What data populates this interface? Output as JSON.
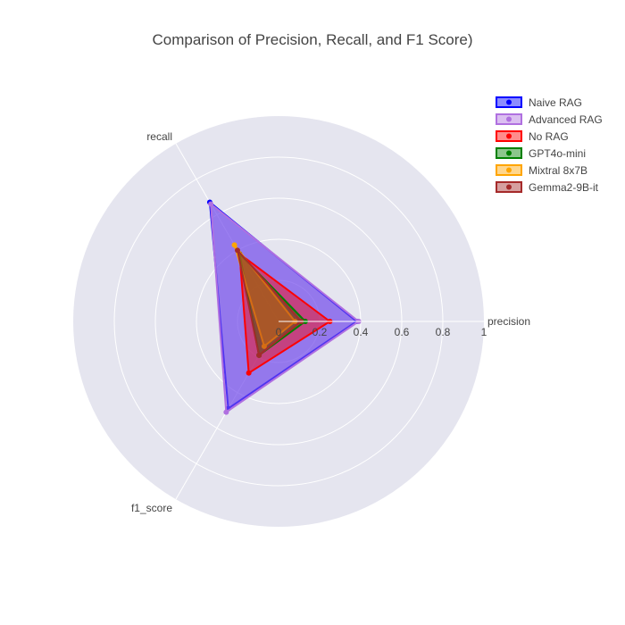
{
  "chart_data": {
    "type": "radar",
    "title": "Comparison of Precision, Recall, and F1 Score)",
    "axes": [
      "precision",
      "recall",
      "f1_score"
    ],
    "radial_range": [
      0,
      1
    ],
    "radial_ticks": [
      "0",
      "0.2",
      "0.4",
      "0.6",
      "0.8",
      "1"
    ],
    "grid": true,
    "legend_position": "top-right",
    "series": [
      {
        "name": "Naive RAG",
        "values": [
          0.38,
          0.67,
          0.49
        ],
        "color": "#0000ff"
      },
      {
        "name": "Advanced RAG",
        "values": [
          0.39,
          0.66,
          0.51
        ],
        "color": "#b070e0"
      },
      {
        "name": "No RAG",
        "values": [
          0.25,
          0.38,
          0.29
        ],
        "color": "#ff0000"
      },
      {
        "name": "GPT4o-mini",
        "values": [
          0.13,
          0.38,
          0.19
        ],
        "color": "#008000"
      },
      {
        "name": "Mixtral 8x7B",
        "values": [
          0.08,
          0.43,
          0.14
        ],
        "color": "#ffa500"
      },
      {
        "name": "Gemma2-9B-it",
        "values": [
          0.11,
          0.4,
          0.19
        ],
        "color": "#a52a2a"
      }
    ]
  }
}
